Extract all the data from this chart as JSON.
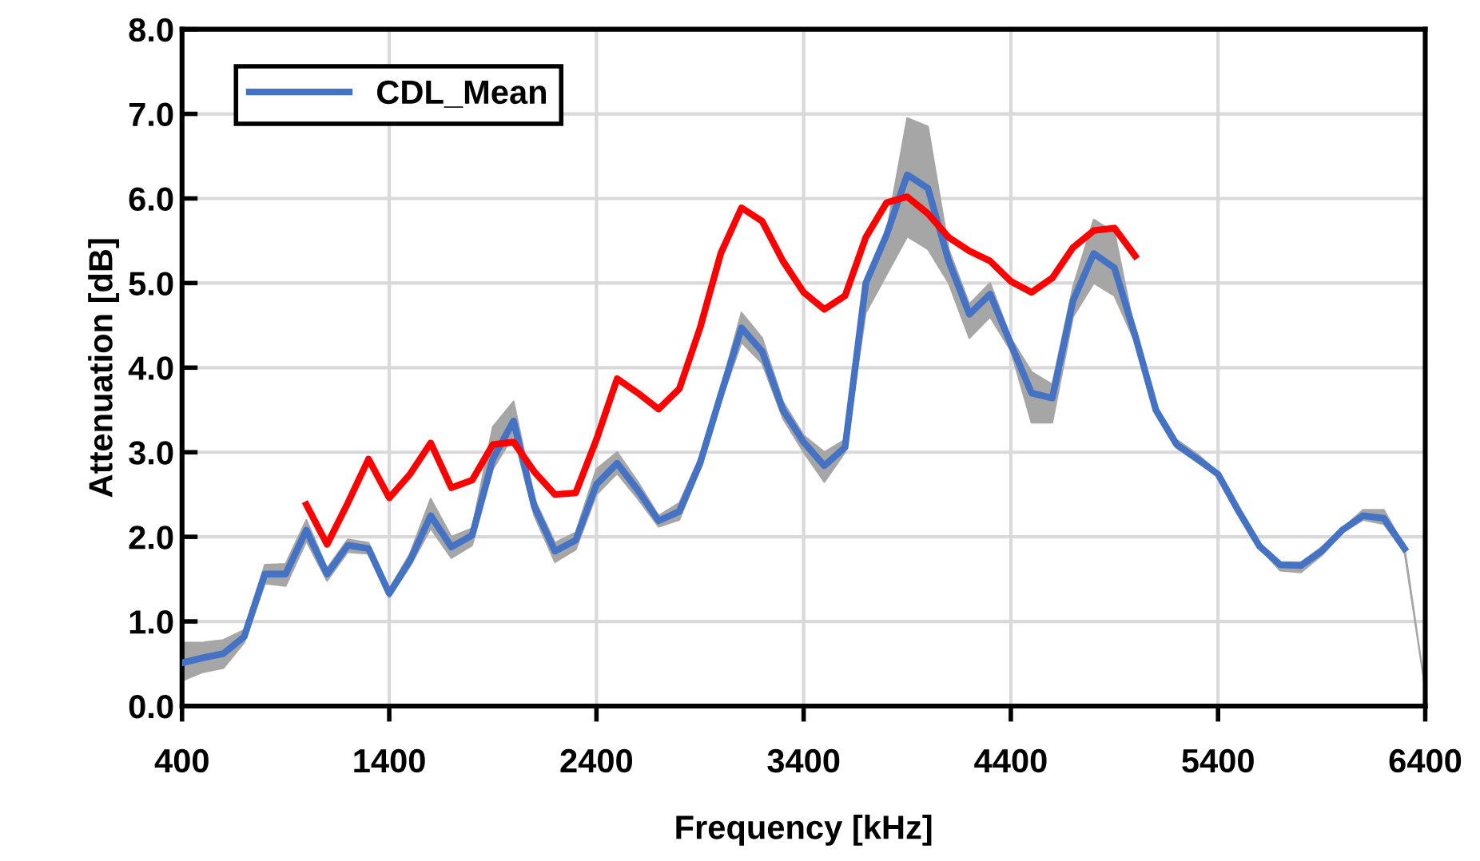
{
  "chart_data": {
    "type": "line",
    "xlabel": "Frequency [kHz]",
    "ylabel": "Attenuation [dB]",
    "xlim": [
      400,
      6400
    ],
    "xticks": [
      400,
      1400,
      2400,
      3400,
      4400,
      5400,
      6400
    ],
    "ylim": [
      0,
      8
    ],
    "yticks": [
      {
        "value": 0,
        "label": "0.0"
      },
      {
        "value": 1,
        "label": "1.0"
      },
      {
        "value": 2,
        "label": "2.0"
      },
      {
        "value": 3,
        "label": "3.0"
      },
      {
        "value": 4,
        "label": "4.0"
      },
      {
        "value": 5,
        "label": "5.0"
      },
      {
        "value": 6,
        "label": "6.0"
      },
      {
        "value": 7,
        "label": "7.0"
      },
      {
        "value": 8,
        "label": "8.0"
      }
    ],
    "grid": true,
    "legend": "top left",
    "marker": "none",
    "line_style": "solid",
    "series": [
      {
        "name": "CDL_Mean",
        "color": "#4472c4",
        "x": [
          400,
          500,
          600,
          700,
          800,
          900,
          1000,
          1100,
          1200,
          1300,
          1400,
          1500,
          1600,
          1700,
          1800,
          1900,
          2000,
          2100,
          2200,
          2300,
          2400,
          2500,
          2600,
          2700,
          2800,
          2900,
          3000,
          3100,
          3200,
          3300,
          3400,
          3500,
          3600,
          3700,
          3800,
          3900,
          4000,
          4100,
          4200,
          4300,
          4400,
          4500,
          4600,
          4700,
          4800,
          4900,
          5000,
          5100,
          5200,
          5300,
          5400,
          5500,
          5600,
          5700,
          5800,
          5900,
          6000,
          6100,
          6200,
          6300,
          6400
        ],
        "values": [
          0.51,
          0.57,
          0.62,
          0.82,
          1.56,
          1.56,
          2.08,
          1.56,
          1.9,
          1.86,
          1.33,
          1.72,
          2.25,
          1.88,
          2.02,
          2.92,
          3.37,
          2.36,
          1.83,
          1.96,
          2.62,
          2.87,
          2.55,
          2.19,
          2.3,
          2.87,
          3.68,
          4.47,
          4.19,
          3.5,
          3.12,
          2.84,
          3.06,
          5.0,
          5.57,
          6.28,
          6.12,
          5.26,
          4.63,
          4.87,
          4.28,
          3.7,
          3.64,
          4.79,
          5.35,
          5.18,
          4.38,
          3.5,
          3.09,
          2.92,
          2.74,
          2.3,
          1.89,
          1.67,
          1.66,
          1.83,
          2.08,
          2.25,
          2.22,
          1.86,
          null
        ],
        "lower": [
          0.3,
          0.4,
          0.45,
          0.75,
          1.45,
          1.42,
          1.95,
          1.48,
          1.82,
          1.8,
          1.28,
          1.65,
          2.1,
          1.75,
          1.9,
          2.8,
          3.2,
          2.25,
          1.7,
          1.85,
          2.5,
          2.75,
          2.45,
          2.12,
          2.2,
          2.8,
          3.6,
          4.3,
          4.05,
          3.4,
          3.0,
          2.65,
          3.0,
          4.65,
          5.1,
          5.55,
          5.4,
          5.0,
          4.35,
          4.6,
          4.2,
          3.35,
          3.35,
          4.6,
          5.0,
          4.85,
          4.3,
          3.45,
          3.05,
          2.88,
          2.72,
          2.28,
          1.87,
          1.6,
          1.58,
          1.78,
          2.05,
          2.2,
          2.15,
          1.82,
          0.2
        ],
        "upper": [
          0.75,
          0.75,
          0.78,
          0.9,
          1.67,
          1.68,
          2.2,
          1.63,
          1.97,
          1.93,
          1.38,
          1.8,
          2.45,
          2.0,
          2.1,
          3.3,
          3.6,
          2.45,
          1.93,
          2.05,
          2.8,
          3.0,
          2.65,
          2.25,
          2.4,
          2.95,
          3.75,
          4.65,
          4.35,
          3.6,
          3.2,
          3.0,
          3.15,
          5.05,
          5.6,
          6.95,
          6.85,
          5.4,
          4.75,
          5.0,
          4.35,
          3.95,
          3.8,
          4.95,
          5.75,
          5.6,
          4.4,
          3.55,
          3.15,
          2.98,
          2.76,
          2.32,
          1.91,
          1.7,
          1.7,
          1.88,
          2.1,
          2.32,
          2.32,
          1.88,
          0.2
        ]
      },
      {
        "color": "#ff0000",
        "x": [
          1000,
          1100,
          1200,
          1300,
          1400,
          1500,
          1600,
          1700,
          1800,
          1900,
          2000,
          2100,
          2200,
          2300,
          2400,
          2500,
          2600,
          2700,
          2800,
          2900,
          3000,
          3100,
          3200,
          3300,
          3400,
          3500,
          3600,
          3700,
          3800,
          3900,
          4000,
          4100,
          4200,
          4300,
          4400,
          4500,
          4600,
          4700,
          4800,
          4900,
          5000
        ],
        "values": [
          2.38,
          1.91,
          2.4,
          2.92,
          2.46,
          2.74,
          3.11,
          2.58,
          2.67,
          3.09,
          3.12,
          2.77,
          2.5,
          2.52,
          3.15,
          3.87,
          3.7,
          3.51,
          3.75,
          4.47,
          5.35,
          5.89,
          5.73,
          5.26,
          4.89,
          4.69,
          4.85,
          5.54,
          5.95,
          6.02,
          5.82,
          5.54,
          5.38,
          5.26,
          5.02,
          4.89,
          5.06,
          5.42,
          5.62,
          5.65,
          5.32
        ]
      }
    ]
  }
}
